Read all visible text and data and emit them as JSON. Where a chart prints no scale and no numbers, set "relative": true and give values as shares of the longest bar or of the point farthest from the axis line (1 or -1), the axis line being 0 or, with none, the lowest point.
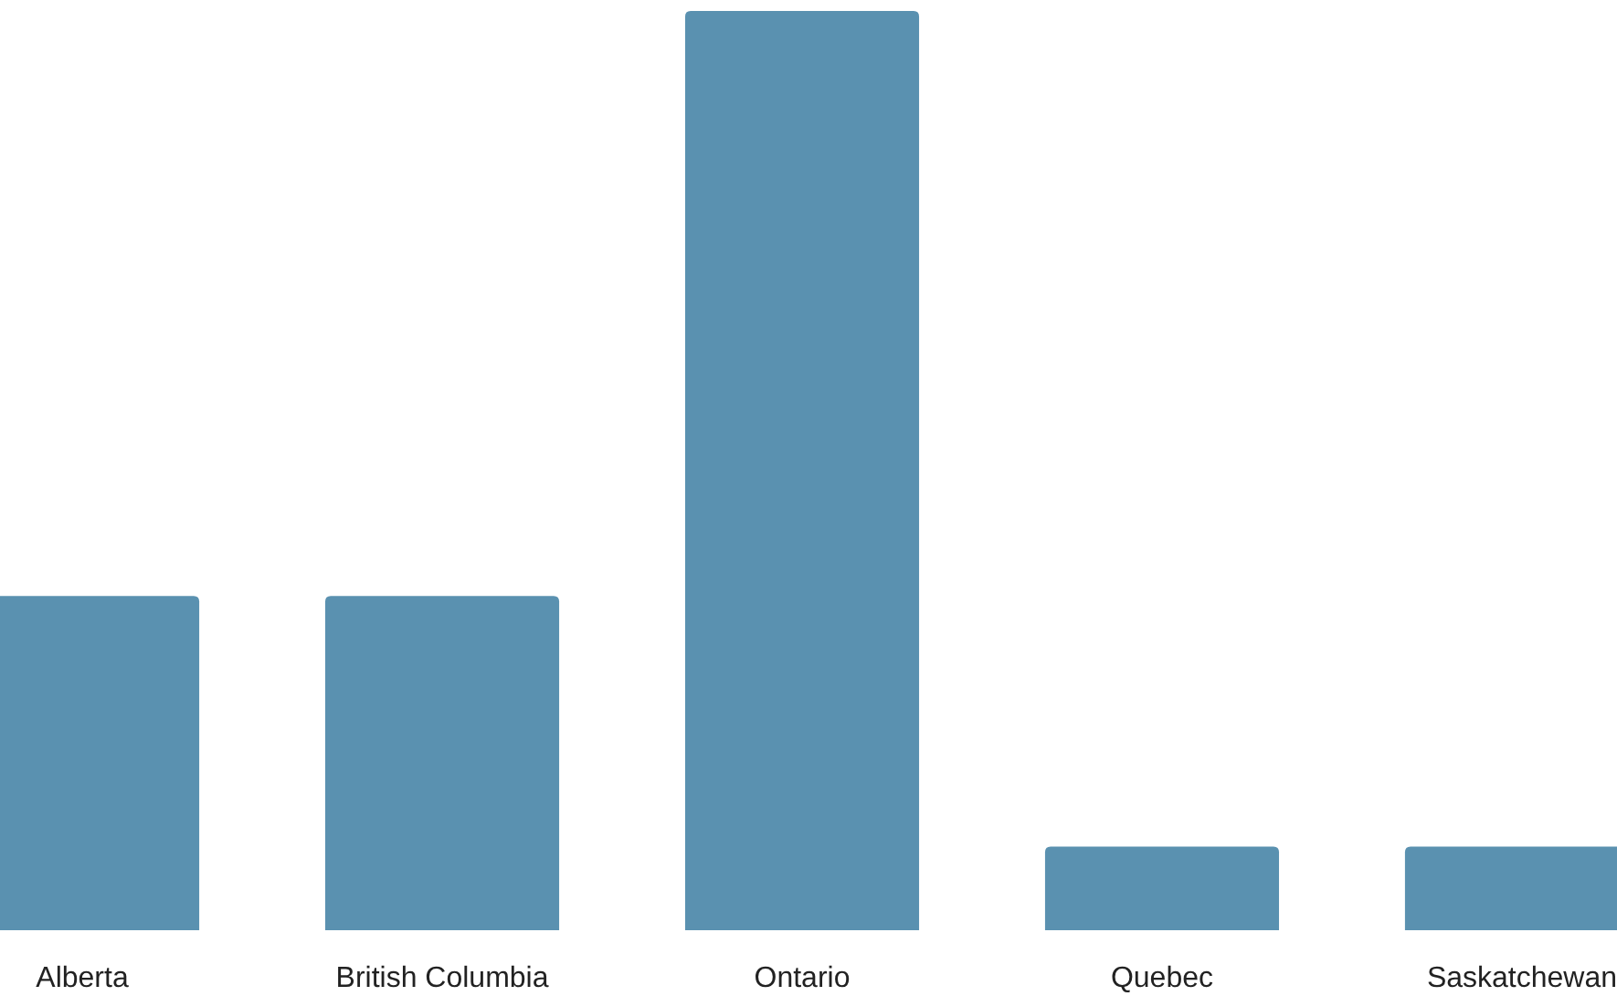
{
  "chart_data": {
    "type": "bar",
    "relative": true,
    "categories": [
      "Alberta",
      "British Columbia",
      "Ontario",
      "Quebec",
      "Saskatchewan"
    ],
    "values": [
      0.3636,
      0.3636,
      1,
      0.0909,
      0.0909
    ],
    "color": "#5a91b0"
  }
}
